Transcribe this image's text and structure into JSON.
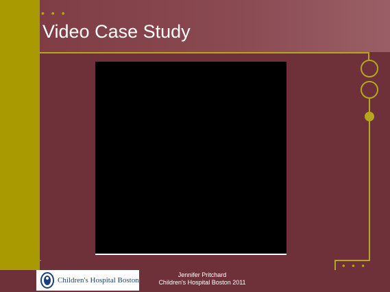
{
  "slide": {
    "title": "Video Case Study",
    "title_dots": "• • •",
    "bottom_dots": "• • •"
  },
  "footer": {
    "author": "Jennifer Pritchard",
    "affiliation": "Children's Hospital Boston 2011"
  },
  "logo": {
    "text": "Children's Hospital Boston",
    "emblem_icon": "hospital-emblem-icon"
  },
  "colors": {
    "background": "#6e3139",
    "title_band": "#8a4a52",
    "accent": "#a89a00",
    "video": "#000000",
    "text": "#ffffff"
  }
}
